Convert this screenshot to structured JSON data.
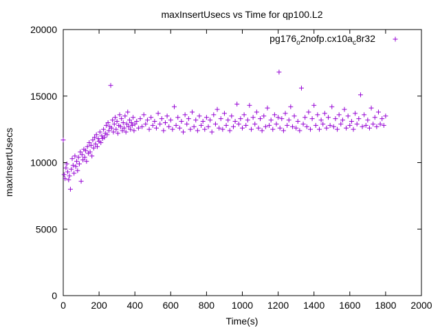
{
  "chart_data": {
    "type": "scatter",
    "title": "maxInsertUsecs vs Time for qp100.L2",
    "xlabel": "Time(s)",
    "ylabel": "maxInsertUsecs",
    "xlim": [
      0,
      2000
    ],
    "ylim": [
      0,
      20000
    ],
    "x_ticks": [
      "0",
      "200",
      "400",
      "600",
      "800",
      "1000",
      "1200",
      "1400",
      "1600",
      "1800",
      "2000"
    ],
    "y_ticks": [
      "0",
      "5000",
      "10000",
      "15000",
      "20000"
    ],
    "grid": false,
    "legend_position": "top-right",
    "marker": "+",
    "series": [
      {
        "name_parts": [
          "pg176",
          "o",
          "2nofp.cx10a",
          "c",
          "8r32"
        ],
        "color": "#9400d3",
        "points": [
          [
            0,
            11700
          ],
          [
            5,
            9100
          ],
          [
            10,
            8800
          ],
          [
            15,
            9600
          ],
          [
            20,
            9900
          ],
          [
            25,
            9300
          ],
          [
            30,
            8700
          ],
          [
            35,
            9000
          ],
          [
            40,
            8000
          ],
          [
            45,
            9500
          ],
          [
            50,
            10300
          ],
          [
            55,
            9800
          ],
          [
            60,
            9200
          ],
          [
            65,
            10500
          ],
          [
            70,
            9700
          ],
          [
            75,
            10100
          ],
          [
            80,
            9400
          ],
          [
            85,
            10400
          ],
          [
            90,
            9900
          ],
          [
            95,
            10800
          ],
          [
            100,
            8600
          ],
          [
            105,
            10600
          ],
          [
            110,
            10200
          ],
          [
            115,
            11000
          ],
          [
            120,
            10400
          ],
          [
            125,
            10900
          ],
          [
            130,
            10100
          ],
          [
            135,
            11200
          ],
          [
            140,
            10700
          ],
          [
            145,
            11500
          ],
          [
            150,
            10800
          ],
          [
            155,
            11300
          ],
          [
            160,
            10500
          ],
          [
            165,
            11700
          ],
          [
            170,
            11100
          ],
          [
            175,
            11900
          ],
          [
            180,
            11400
          ],
          [
            185,
            12100
          ],
          [
            190,
            11200
          ],
          [
            195,
            11800
          ],
          [
            200,
            11600
          ],
          [
            205,
            12300
          ],
          [
            210,
            11500
          ],
          [
            215,
            12000
          ],
          [
            220,
            11800
          ],
          [
            225,
            12500
          ],
          [
            230,
            11900
          ],
          [
            235,
            12200
          ],
          [
            240,
            12800
          ],
          [
            245,
            12100
          ],
          [
            250,
            13000
          ],
          [
            255,
            12400
          ],
          [
            260,
            12700
          ],
          [
            265,
            15800
          ],
          [
            270,
            12600
          ],
          [
            275,
            13200
          ],
          [
            280,
            12300
          ],
          [
            285,
            12900
          ],
          [
            290,
            13400
          ],
          [
            295,
            12500
          ],
          [
            300,
            13100
          ],
          [
            305,
            12200
          ],
          [
            310,
            12800
          ],
          [
            315,
            13600
          ],
          [
            320,
            12700
          ],
          [
            325,
            13300
          ],
          [
            330,
            12400
          ],
          [
            335,
            13000
          ],
          [
            340,
            12600
          ],
          [
            345,
            13500
          ],
          [
            350,
            12300
          ],
          [
            355,
            12900
          ],
          [
            360,
            13800
          ],
          [
            365,
            12700
          ],
          [
            370,
            13200
          ],
          [
            375,
            12500
          ],
          [
            380,
            13000
          ],
          [
            385,
            12800
          ],
          [
            390,
            13400
          ],
          [
            395,
            12400
          ],
          [
            400,
            12900
          ],
          [
            410,
            13100
          ],
          [
            420,
            12600
          ],
          [
            430,
            13300
          ],
          [
            440,
            12700
          ],
          [
            450,
            13600
          ],
          [
            460,
            12900
          ],
          [
            470,
            13200
          ],
          [
            480,
            12500
          ],
          [
            490,
            13400
          ],
          [
            500,
            12800
          ],
          [
            510,
            13100
          ],
          [
            520,
            12600
          ],
          [
            530,
            13700
          ],
          [
            540,
            12900
          ],
          [
            550,
            13300
          ],
          [
            560,
            12400
          ],
          [
            570,
            13000
          ],
          [
            580,
            13500
          ],
          [
            590,
            12700
          ],
          [
            600,
            13200
          ],
          [
            610,
            12500
          ],
          [
            620,
            14200
          ],
          [
            630,
            12800
          ],
          [
            640,
            13400
          ],
          [
            650,
            12600
          ],
          [
            660,
            13100
          ],
          [
            670,
            12300
          ],
          [
            680,
            13600
          ],
          [
            690,
            12900
          ],
          [
            700,
            13300
          ],
          [
            710,
            12500
          ],
          [
            720,
            13800
          ],
          [
            730,
            12700
          ],
          [
            740,
            13200
          ],
          [
            750,
            12400
          ],
          [
            760,
            13500
          ],
          [
            770,
            12800
          ],
          [
            780,
            13100
          ],
          [
            790,
            12500
          ],
          [
            800,
            13400
          ],
          [
            810,
            12700
          ],
          [
            820,
            13200
          ],
          [
            830,
            12300
          ],
          [
            840,
            13600
          ],
          [
            850,
            12900
          ],
          [
            860,
            14000
          ],
          [
            870,
            12600
          ],
          [
            880,
            13300
          ],
          [
            890,
            12500
          ],
          [
            900,
            13700
          ],
          [
            910,
            12800
          ],
          [
            920,
            13200
          ],
          [
            930,
            12400
          ],
          [
            940,
            13500
          ],
          [
            950,
            12700
          ],
          [
            960,
            13100
          ],
          [
            970,
            14400
          ],
          [
            980,
            12900
          ],
          [
            990,
            13300
          ],
          [
            1000,
            12600
          ],
          [
            1010,
            13600
          ],
          [
            1020,
            12800
          ],
          [
            1030,
            13200
          ],
          [
            1040,
            14300
          ],
          [
            1050,
            12500
          ],
          [
            1060,
            13400
          ],
          [
            1070,
            12900
          ],
          [
            1080,
            13800
          ],
          [
            1090,
            12600
          ],
          [
            1100,
            13300
          ],
          [
            1110,
            12400
          ],
          [
            1120,
            13500
          ],
          [
            1130,
            12700
          ],
          [
            1140,
            14100
          ],
          [
            1150,
            12800
          ],
          [
            1160,
            13200
          ],
          [
            1170,
            12500
          ],
          [
            1180,
            13600
          ],
          [
            1190,
            12900
          ],
          [
            1200,
            13400
          ],
          [
            1205,
            16800
          ],
          [
            1210,
            12600
          ],
          [
            1220,
            13300
          ],
          [
            1230,
            12400
          ],
          [
            1240,
            13700
          ],
          [
            1250,
            12800
          ],
          [
            1260,
            13200
          ],
          [
            1270,
            14200
          ],
          [
            1280,
            12700
          ],
          [
            1290,
            13500
          ],
          [
            1300,
            12600
          ],
          [
            1310,
            13100
          ],
          [
            1320,
            12400
          ],
          [
            1330,
            15600
          ],
          [
            1340,
            12900
          ],
          [
            1350,
            13400
          ],
          [
            1360,
            12700
          ],
          [
            1370,
            13800
          ],
          [
            1380,
            12500
          ],
          [
            1390,
            13300
          ],
          [
            1400,
            14300
          ],
          [
            1410,
            12800
          ],
          [
            1420,
            13600
          ],
          [
            1430,
            12500
          ],
          [
            1440,
            13200
          ],
          [
            1450,
            12900
          ],
          [
            1460,
            13700
          ],
          [
            1470,
            12600
          ],
          [
            1480,
            13400
          ],
          [
            1490,
            12800
          ],
          [
            1500,
            14200
          ],
          [
            1510,
            12700
          ],
          [
            1520,
            13300
          ],
          [
            1530,
            12500
          ],
          [
            1540,
            13600
          ],
          [
            1550,
            12900
          ],
          [
            1560,
            13200
          ],
          [
            1570,
            14000
          ],
          [
            1580,
            12600
          ],
          [
            1590,
            13500
          ],
          [
            1600,
            12800
          ],
          [
            1610,
            13100
          ],
          [
            1620,
            12500
          ],
          [
            1630,
            13700
          ],
          [
            1640,
            12900
          ],
          [
            1650,
            13300
          ],
          [
            1660,
            15100
          ],
          [
            1670,
            12700
          ],
          [
            1680,
            13600
          ],
          [
            1690,
            12800
          ],
          [
            1700,
            13200
          ],
          [
            1710,
            12600
          ],
          [
            1720,
            14100
          ],
          [
            1730,
            12900
          ],
          [
            1740,
            13400
          ],
          [
            1750,
            12700
          ],
          [
            1760,
            13800
          ],
          [
            1770,
            12900
          ],
          [
            1780,
            13300
          ],
          [
            1790,
            12800
          ],
          [
            1800,
            13500
          ]
        ]
      }
    ]
  }
}
